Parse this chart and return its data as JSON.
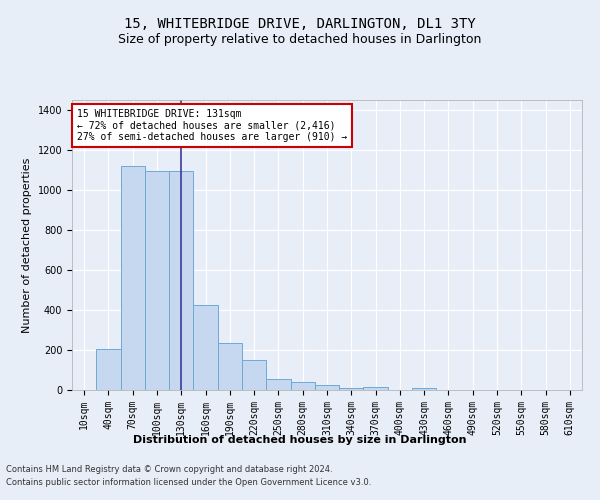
{
  "title": "15, WHITEBRIDGE DRIVE, DARLINGTON, DL1 3TY",
  "subtitle": "Size of property relative to detached houses in Darlington",
  "xlabel": "Distribution of detached houses by size in Darlington",
  "ylabel": "Number of detached properties",
  "bar_labels": [
    "10sqm",
    "40sqm",
    "70sqm",
    "100sqm",
    "130sqm",
    "160sqm",
    "190sqm",
    "220sqm",
    "250sqm",
    "280sqm",
    "310sqm",
    "340sqm",
    "370sqm",
    "400sqm",
    "430sqm",
    "460sqm",
    "490sqm",
    "520sqm",
    "550sqm",
    "580sqm",
    "610sqm"
  ],
  "bar_values": [
    0,
    207,
    1120,
    1097,
    1097,
    427,
    233,
    148,
    57,
    38,
    25,
    12,
    15,
    0,
    12,
    0,
    0,
    0,
    0,
    0,
    0
  ],
  "bar_color": "#c5d8f0",
  "bar_edge_color": "#6fa8d5",
  "vline_x": 4,
  "vline_color": "#3a3a9a",
  "annotation_text": "15 WHITEBRIDGE DRIVE: 131sqm\n← 72% of detached houses are smaller (2,416)\n27% of semi-detached houses are larger (910) →",
  "annotation_box_color": "#ffffff",
  "annotation_edge_color": "#cc0000",
  "ylim": [
    0,
    1450
  ],
  "yticks": [
    0,
    200,
    400,
    600,
    800,
    1000,
    1200,
    1400
  ],
  "bg_color": "#e8eef8",
  "plot_bg_color": "#e8eef8",
  "footer1": "Contains HM Land Registry data © Crown copyright and database right 2024.",
  "footer2": "Contains public sector information licensed under the Open Government Licence v3.0.",
  "grid_color": "#ffffff",
  "title_fontsize": 10,
  "subtitle_fontsize": 9,
  "tick_fontsize": 7,
  "ylabel_fontsize": 8,
  "xlabel_fontsize": 8,
  "annotation_fontsize": 7,
  "footer_fontsize": 6
}
